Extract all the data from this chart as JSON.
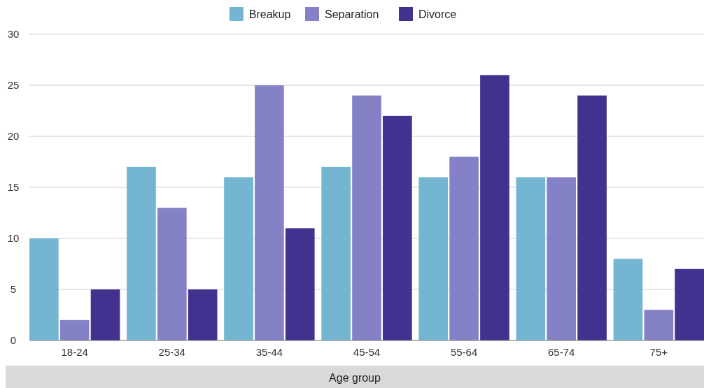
{
  "chart_data": {
    "type": "bar",
    "xlabel": "Age group",
    "categories": [
      "18-24",
      "25-34",
      "35-44",
      "45-54",
      "55-64",
      "65-74",
      "75+"
    ],
    "series": [
      {
        "name": "Breakup",
        "color": "#74b5d2",
        "values": [
          10,
          17,
          16,
          17,
          16,
          16,
          8
        ]
      },
      {
        "name": "Separation",
        "color": "#8581c6",
        "values": [
          2,
          13,
          25,
          24,
          18,
          16,
          3
        ]
      },
      {
        "name": "Divorce",
        "color": "#42318e",
        "values": [
          5,
          5,
          11,
          22,
          26,
          24,
          7
        ]
      }
    ],
    "ylim": [
      0,
      30
    ],
    "yticks": [
      0,
      5,
      10,
      15,
      20,
      25,
      30
    ],
    "grid": "y",
    "legend": "top"
  }
}
